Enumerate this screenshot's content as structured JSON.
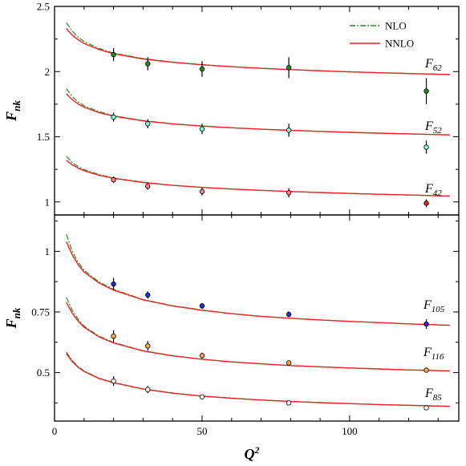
{
  "chart_data": [
    {
      "type": "line",
      "panel": "top",
      "ylabel": "F",
      "ylabel_sub": "nk",
      "xlabel": "",
      "xlim": [
        0,
        137
      ],
      "ylim": [
        0.9,
        2.5
      ],
      "yticks": [
        1,
        1.5,
        2,
        2.5
      ],
      "ytick_labels": [
        "1",
        "1.5",
        "2",
        "2.5"
      ],
      "xticks": [
        0,
        50,
        100
      ],
      "legend": {
        "placement": "top-right",
        "entries": [
          {
            "label": "NLO",
            "color": "#2e8b22",
            "style": "dash-dot"
          },
          {
            "label": "NNLO",
            "color": "#ee2222",
            "style": "solid"
          }
        ]
      },
      "curve_labels": [
        {
          "main": "F",
          "sub": "62"
        },
        {
          "main": "F",
          "sub": "52"
        },
        {
          "main": "F",
          "sub": "42"
        }
      ],
      "series": [
        {
          "name": "F62",
          "nnlo": {
            "x": [
              4,
              6,
              8,
              10,
              15,
              20,
              30,
              40,
              50,
              60,
              70,
              80,
              90,
              100,
              110,
              120,
              127,
              134
            ],
            "y": [
              2.33,
              2.28,
              2.245,
              2.215,
              2.17,
              2.137,
              2.097,
              2.071,
              2.052,
              2.037,
              2.025,
              2.015,
              2.006,
              1.998,
              1.991,
              1.985,
              1.981,
              1.977
            ]
          },
          "nlo": {
            "x": [
              4,
              6,
              8,
              10,
              15,
              20,
              30,
              40,
              50,
              60,
              70,
              80,
              90,
              100,
              110,
              120,
              127,
              134
            ],
            "y": [
              2.375,
              2.31,
              2.265,
              2.23,
              2.178,
              2.142,
              2.1,
              2.073,
              2.054,
              2.038,
              2.026,
              2.016,
              2.007,
              1.999,
              1.992,
              1.986,
              1.982,
              1.978
            ]
          },
          "points": [
            {
              "x": 20,
              "y": 2.13,
              "err": 0.05,
              "color": "#228b22"
            },
            {
              "x": 31.6,
              "y": 2.06,
              "err": 0.05,
              "color": "#228b22"
            },
            {
              "x": 50,
              "y": 2.02,
              "err": 0.06,
              "color": "#228b22"
            },
            {
              "x": 79.4,
              "y": 2.03,
              "err": 0.08,
              "color": "#228b22"
            },
            {
              "x": 126,
              "y": 1.85,
              "err": 0.1,
              "color": "#228b22"
            }
          ]
        },
        {
          "name": "F52",
          "nnlo": {
            "x": [
              4,
              6,
              8,
              10,
              15,
              20,
              30,
              40,
              50,
              60,
              70,
              80,
              90,
              100,
              110,
              120,
              127,
              134
            ],
            "y": [
              1.83,
              1.785,
              1.752,
              1.727,
              1.686,
              1.658,
              1.622,
              1.599,
              1.582,
              1.569,
              1.558,
              1.549,
              1.541,
              1.534,
              1.528,
              1.522,
              1.518,
              1.514
            ]
          },
          "nlo": {
            "x": [
              4,
              6,
              8,
              10,
              15,
              20,
              30,
              40,
              50,
              60,
              70,
              80,
              90,
              100,
              110,
              120,
              127,
              134
            ],
            "y": [
              1.87,
              1.808,
              1.768,
              1.738,
              1.693,
              1.662,
              1.624,
              1.6,
              1.583,
              1.569,
              1.558,
              1.549,
              1.541,
              1.534,
              1.528,
              1.522,
              1.518,
              1.514
            ]
          },
          "points": [
            {
              "x": 20,
              "y": 1.65,
              "err": 0.035,
              "color": "#7fffd4"
            },
            {
              "x": 31.6,
              "y": 1.6,
              "err": 0.035,
              "color": "#7fffd4"
            },
            {
              "x": 50,
              "y": 1.56,
              "err": 0.04,
              "color": "#7fffd4"
            },
            {
              "x": 79.4,
              "y": 1.55,
              "err": 0.05,
              "color": "#7fffd4"
            },
            {
              "x": 126,
              "y": 1.42,
              "err": 0.05,
              "color": "#7fffd4"
            }
          ]
        },
        {
          "name": "F42",
          "nnlo": {
            "x": [
              4,
              6,
              8,
              10,
              15,
              20,
              30,
              40,
              50,
              60,
              70,
              80,
              90,
              100,
              110,
              120,
              127,
              134
            ],
            "y": [
              1.32,
              1.285,
              1.26,
              1.24,
              1.205,
              1.181,
              1.149,
              1.127,
              1.111,
              1.099,
              1.089,
              1.08,
              1.072,
              1.065,
              1.059,
              1.053,
              1.049,
              1.045
            ]
          },
          "nlo": {
            "x": [
              4,
              6,
              8,
              10,
              15,
              20,
              30,
              40,
              50,
              60,
              70,
              80,
              90,
              100,
              110,
              120,
              127,
              134
            ],
            "y": [
              1.35,
              1.302,
              1.272,
              1.248,
              1.21,
              1.184,
              1.151,
              1.128,
              1.112,
              1.099,
              1.089,
              1.08,
              1.072,
              1.065,
              1.059,
              1.053,
              1.049,
              1.045
            ]
          },
          "points": [
            {
              "x": 20,
              "y": 1.17,
              "err": 0.025,
              "color": "#ff8080"
            },
            {
              "x": 31.6,
              "y": 1.12,
              "err": 0.025,
              "color": "#ff8080"
            },
            {
              "x": 50,
              "y": 1.08,
              "err": 0.03,
              "color": "#ff8080"
            },
            {
              "x": 79.4,
              "y": 1.07,
              "err": 0.035,
              "color": "#ff8080"
            },
            {
              "x": 126,
              "y": 0.99,
              "err": 0.03,
              "color": "#dd2222"
            }
          ]
        }
      ]
    },
    {
      "type": "line",
      "panel": "bottom",
      "ylabel": "F",
      "ylabel_sub": "nk",
      "xlabel": "Q",
      "xlabel_sup": "2",
      "xlim": [
        0,
        137
      ],
      "ylim": [
        0.3,
        1.15
      ],
      "yticks": [
        0.5,
        0.75,
        1
      ],
      "ytick_labels": [
        "0.5",
        "0.75",
        "1"
      ],
      "xticks": [
        0,
        50,
        100
      ],
      "xtick_labels": [
        "0",
        "50",
        "100"
      ],
      "curve_labels": [
        {
          "main": "F",
          "sub": "105"
        },
        {
          "main": "F",
          "sub": "116"
        },
        {
          "main": "F",
          "sub": "85"
        }
      ],
      "series": [
        {
          "name": "F105",
          "nnlo": {
            "x": [
              4,
              6,
              8,
              10,
              15,
              20,
              30,
              40,
              50,
              60,
              70,
              80,
              90,
              100,
              110,
              120,
              127,
              134
            ],
            "y": [
              1.04,
              0.985,
              0.945,
              0.915,
              0.87,
              0.84,
              0.8,
              0.775,
              0.757,
              0.743,
              0.732,
              0.724,
              0.717,
              0.711,
              0.706,
              0.701,
              0.698,
              0.695
            ]
          },
          "nlo": {
            "x": [
              4,
              6,
              8,
              10,
              15,
              20,
              30,
              40,
              50,
              60,
              70,
              80,
              90,
              100,
              110,
              120,
              127,
              134
            ],
            "y": [
              1.07,
              1.0,
              0.955,
              0.922,
              0.874,
              0.843,
              0.801,
              0.776,
              0.758,
              0.743,
              0.732,
              0.724,
              0.717,
              0.711,
              0.706,
              0.701,
              0.698,
              0.695
            ]
          },
          "points": [
            {
              "x": 20,
              "y": 0.865,
              "err": 0.025,
              "color": "#2233cc"
            },
            {
              "x": 31.6,
              "y": 0.82,
              "err": 0.015,
              "color": "#2233cc"
            },
            {
              "x": 50,
              "y": 0.775,
              "err": 0.012,
              "color": "#2233cc"
            },
            {
              "x": 79.4,
              "y": 0.74,
              "err": 0.012,
              "color": "#2233cc"
            },
            {
              "x": 126,
              "y": 0.7,
              "err": 0.02,
              "color": "#2233cc"
            }
          ]
        },
        {
          "name": "F116",
          "nnlo": {
            "x": [
              4,
              6,
              8,
              10,
              15,
              20,
              30,
              40,
              50,
              60,
              70,
              80,
              90,
              100,
              110,
              120,
              127,
              134
            ],
            "y": [
              0.79,
              0.745,
              0.712,
              0.687,
              0.648,
              0.622,
              0.589,
              0.569,
              0.555,
              0.544,
              0.536,
              0.529,
              0.524,
              0.519,
              0.515,
              0.511,
              0.509,
              0.507
            ]
          },
          "nlo": {
            "x": [
              4,
              6,
              8,
              10,
              15,
              20,
              30,
              40,
              50,
              60,
              70,
              80,
              90,
              100,
              110,
              120,
              127,
              134
            ],
            "y": [
              0.81,
              0.757,
              0.72,
              0.692,
              0.651,
              0.624,
              0.59,
              0.57,
              0.555,
              0.544,
              0.536,
              0.529,
              0.524,
              0.519,
              0.515,
              0.511,
              0.509,
              0.507
            ]
          },
          "points": [
            {
              "x": 20,
              "y": 0.65,
              "err": 0.025,
              "color": "#ffaa44"
            },
            {
              "x": 31.6,
              "y": 0.61,
              "err": 0.02,
              "color": "#ffaa44"
            },
            {
              "x": 50,
              "y": 0.57,
              "err": 0.012,
              "color": "#ffaa44"
            },
            {
              "x": 79.4,
              "y": 0.54,
              "err": 0.01,
              "color": "#ffaa44"
            },
            {
              "x": 126,
              "y": 0.51,
              "err": 0.01,
              "color": "#ffaa44"
            }
          ]
        },
        {
          "name": "F85",
          "nnlo": {
            "x": [
              4,
              6,
              8,
              10,
              15,
              20,
              30,
              40,
              50,
              60,
              70,
              80,
              90,
              100,
              110,
              120,
              127,
              134
            ],
            "y": [
              0.578,
              0.545,
              0.522,
              0.505,
              0.476,
              0.458,
              0.432,
              0.415,
              0.403,
              0.394,
              0.387,
              0.381,
              0.376,
              0.372,
              0.368,
              0.365,
              0.363,
              0.361
            ]
          },
          "nlo": {
            "x": [
              4,
              6,
              8,
              10,
              15,
              20,
              30,
              40,
              50,
              60,
              70,
              80,
              90,
              100,
              110,
              120,
              127,
              134
            ],
            "y": [
              0.585,
              0.549,
              0.525,
              0.507,
              0.477,
              0.459,
              0.433,
              0.416,
              0.404,
              0.395,
              0.387,
              0.381,
              0.376,
              0.372,
              0.368,
              0.365,
              0.363,
              0.361
            ]
          },
          "points": [
            {
              "x": 20,
              "y": 0.465,
              "err": 0.02,
              "color": "#ffffff"
            },
            {
              "x": 31.6,
              "y": 0.43,
              "err": 0.015,
              "color": "#ffffff"
            },
            {
              "x": 50,
              "y": 0.4,
              "err": 0.01,
              "color": "#ffffff"
            },
            {
              "x": 79.4,
              "y": 0.375,
              "err": 0.008,
              "color": "#ffffff"
            },
            {
              "x": 126,
              "y": 0.355,
              "err": 0.008,
              "color": "#ffffff"
            }
          ]
        }
      ]
    }
  ]
}
